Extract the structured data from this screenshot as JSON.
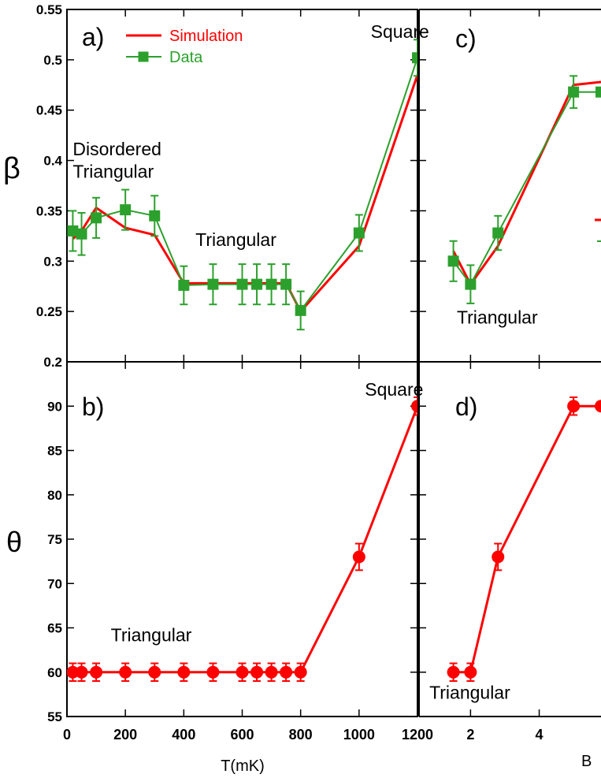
{
  "colors": {
    "simulation": "#ff0000",
    "data": "#2ca02c",
    "axis": "#000000"
  },
  "x_axis_label": "T(mK)",
  "x2_axis_label": "B",
  "chart_data": [
    {
      "id": "a",
      "type": "line",
      "panel_label": "a)",
      "ylabel": "β",
      "xlim": [
        0,
        1200
      ],
      "ylim": [
        0.2,
        0.55
      ],
      "xticks": [
        0,
        200,
        400,
        600,
        800,
        1000,
        1200
      ],
      "yticks": [
        0.2,
        0.25,
        0.3,
        0.35,
        0.4,
        0.45,
        0.5,
        0.55
      ],
      "ytick_labels": [
        "0.2",
        "0.25",
        "0.3",
        "0.35",
        "0.4",
        "0.45",
        "0.5",
        "0.55"
      ],
      "legend": {
        "position": "top",
        "entries": [
          "Simulation",
          "Data"
        ]
      },
      "annotations": [
        {
          "text": "Square",
          "x": 1040,
          "y": 0.522
        },
        {
          "text": "Disordered",
          "x": 20,
          "y": 0.405
        },
        {
          "text": "Triangular",
          "x": 20,
          "y": 0.383
        },
        {
          "text": "Triangular",
          "x": 440,
          "y": 0.315
        }
      ],
      "series": [
        {
          "name": "Simulation",
          "style": "line",
          "color_key": "simulation",
          "x": [
            20,
            50,
            100,
            200,
            300,
            400,
            500,
            600,
            650,
            700,
            750,
            800,
            1000,
            1200
          ],
          "y": [
            0.322,
            0.33,
            0.353,
            0.333,
            0.326,
            0.278,
            0.278,
            0.278,
            0.278,
            0.278,
            0.278,
            0.25,
            0.315,
            0.485
          ]
        },
        {
          "name": "Data",
          "style": "line-square",
          "color_key": "data",
          "x": [
            20,
            50,
            100,
            200,
            300,
            400,
            500,
            600,
            650,
            700,
            750,
            800,
            1000,
            1200
          ],
          "y": [
            0.33,
            0.327,
            0.343,
            0.351,
            0.345,
            0.276,
            0.277,
            0.277,
            0.277,
            0.277,
            0.277,
            0.251,
            0.328,
            0.502
          ],
          "err": [
            0.02,
            0.021,
            0.02,
            0.02,
            0.02,
            0.019,
            0.02,
            0.02,
            0.02,
            0.02,
            0.02,
            0.019,
            0.018,
            0.018
          ]
        }
      ]
    },
    {
      "id": "b",
      "type": "line",
      "panel_label": "b)",
      "ylabel": "θ",
      "xlabel": "T(mK)",
      "xlim": [
        0,
        1200
      ],
      "ylim": [
        55,
        95
      ],
      "xticks": [
        0,
        200,
        400,
        600,
        800,
        1000,
        1200
      ],
      "xtick_labels": [
        "0",
        "200",
        "400",
        "600",
        "800",
        "1000",
        "1200"
      ],
      "yticks": [
        55,
        60,
        65,
        70,
        75,
        80,
        85,
        90
      ],
      "ytick_labels": [
        "55",
        "60",
        "65",
        "70",
        "75",
        "80",
        "85",
        "90"
      ],
      "annotations": [
        {
          "text": "Square",
          "x": 1020,
          "y": 91.2
        },
        {
          "text": "Triangular",
          "x": 150,
          "y": 63.5
        }
      ],
      "series": [
        {
          "name": "Simulation",
          "style": "line-circle",
          "color_key": "simulation",
          "x": [
            20,
            50,
            100,
            200,
            300,
            400,
            500,
            600,
            650,
            700,
            750,
            800,
            1000,
            1200
          ],
          "y": [
            60,
            60,
            60,
            60,
            60,
            60,
            60,
            60,
            60,
            60,
            60,
            60,
            73,
            90
          ],
          "err": [
            1,
            1,
            1,
            1,
            1,
            1,
            1,
            1,
            1,
            1,
            1,
            1,
            1.5,
            1
          ]
        }
      ]
    },
    {
      "id": "c",
      "type": "line",
      "panel_label": "c)",
      "xlim": [
        0.5,
        5.8
      ],
      "ylim": [
        0.2,
        0.55
      ],
      "xticks": [
        2,
        4
      ],
      "yticks": [
        0.2,
        0.25,
        0.3,
        0.35,
        0.4,
        0.45,
        0.5,
        0.55
      ],
      "annotations": [
        {
          "text": "Triangular",
          "x": 1.6,
          "y": 0.238
        }
      ],
      "series": [
        {
          "name": "Simulation",
          "style": "line",
          "color_key": "simulation",
          "x": [
            1.5,
            2.0,
            2.8,
            5.0,
            5.8
          ],
          "y": [
            0.31,
            0.277,
            0.315,
            0.475,
            0.478
          ]
        },
        {
          "name": "Data",
          "style": "line-square",
          "color_key": "data",
          "x": [
            1.5,
            2.0,
            2.8,
            5.0,
            5.8
          ],
          "y": [
            0.3,
            0.277,
            0.328,
            0.468,
            0.468
          ],
          "err": [
            0.02,
            0.019,
            0.017,
            0.016,
            0
          ]
        }
      ]
    },
    {
      "id": "d",
      "type": "line",
      "panel_label": "d)",
      "xlabel": "B",
      "xlim": [
        0.5,
        5.8
      ],
      "ylim": [
        55,
        95
      ],
      "xticks": [
        2,
        4
      ],
      "xtick_labels": [
        "2",
        "4"
      ],
      "yticks": [
        55,
        60,
        65,
        70,
        75,
        80,
        85,
        90
      ],
      "annotations": [
        {
          "text": "Triangular",
          "x": 0.8,
          "y": 57.0
        }
      ],
      "series": [
        {
          "name": "Simulation",
          "style": "line-circle",
          "color_key": "simulation",
          "x": [
            1.5,
            2.0,
            2.8,
            5.0,
            5.8
          ],
          "y": [
            60,
            60,
            73,
            90,
            90
          ],
          "err": [
            1,
            1,
            1.5,
            1,
            0
          ]
        }
      ]
    }
  ]
}
